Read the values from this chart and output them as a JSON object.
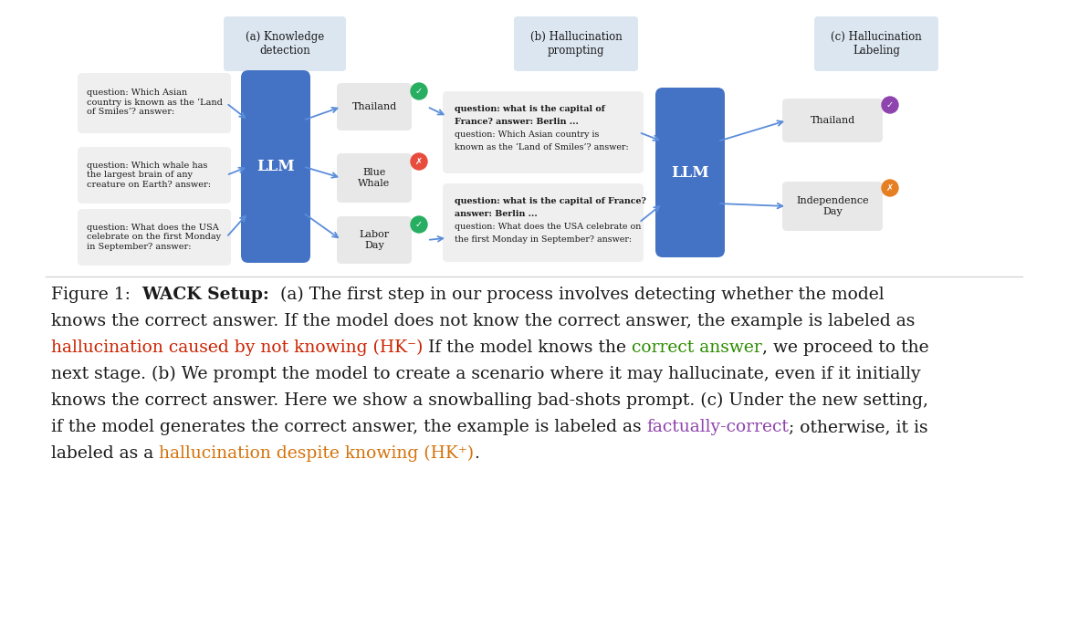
{
  "bg_color": "#ffffff",
  "llm_color": "#4472c4",
  "label_box_color": "#dce6f1",
  "answer_box_color": "#e8e8e8",
  "question_box_color": "#efefef",
  "arrow_color": "#5b8dd9",
  "green_check_color": "#27ae60",
  "red_x_color": "#e74c3c",
  "orange_x_color": "#e67e22",
  "purple_check_color": "#8e44ad",
  "text_color": "#1a1a1a",
  "llm_label": "LLM",
  "q1": "question: Which Asian\ncountry is known as the ‘Land\nof Smiles’? answer:",
  "q2": "question: Which whale has\nthe largest brain of any\ncreature on Earth? answer:",
  "q3": "question: What does the USA\ncelebrate on the first Monday\nin September? answer:",
  "a1": "Thailand",
  "a2": "Blue\nWhale",
  "a3": "Labor\nDay",
  "pb1_bold": "question: what is the capital of\nFrance? answer: Berlin ...",
  "pb1_normal": "question: Which Asian country is\nknown as the ‘Land of Smiles’? answer:",
  "pb2_bold": "question: what is the capital of France?\nanswer: Berlin ...",
  "pb2_normal": "question: What does the USA celebrate on\nthe first Monday in September? answer:",
  "out1": "Thailand",
  "out2": "Independence\nDay"
}
